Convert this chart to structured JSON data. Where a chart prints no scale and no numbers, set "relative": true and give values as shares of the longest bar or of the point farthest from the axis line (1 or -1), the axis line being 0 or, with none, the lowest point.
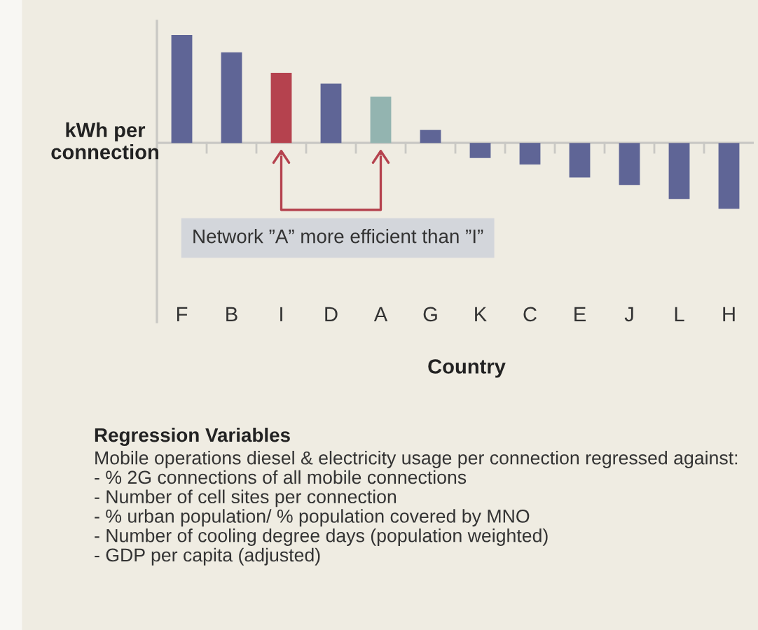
{
  "chart_data": {
    "type": "bar",
    "relative": true,
    "categories": [
      "F",
      "B",
      "I",
      "D",
      "A",
      "G",
      "K",
      "C",
      "E",
      "J",
      "L",
      "H"
    ],
    "values": [
      1,
      0.84,
      0.65,
      0.55,
      0.43,
      0.12,
      -0.14,
      -0.2,
      -0.32,
      -0.39,
      -0.52,
      -0.61
    ],
    "colors": [
      "#5f6596",
      "#5f6596",
      "#b5424e",
      "#5f6596",
      "#93b4b0",
      "#5f6596",
      "#5f6596",
      "#5f6596",
      "#5f6596",
      "#5f6596",
      "#5f6596",
      "#5f6596"
    ],
    "xlabel": "Country",
    "ylabel": "kWh per\nconnection",
    "annotations": [
      "Network ”A” more efficient than ”I”",
      "Regression Variables",
      "Mobile operations diesel & electricity usage per connection regressed against:\n- % 2G connections of all mobile connections\n- Number of cell sites per connection\n- % urban population/ % population covered by MNO\n- Number of cooling degree days (population weighted)\n- GDP per capita (adjusted)"
    ],
    "grid": false,
    "legend": false
  }
}
